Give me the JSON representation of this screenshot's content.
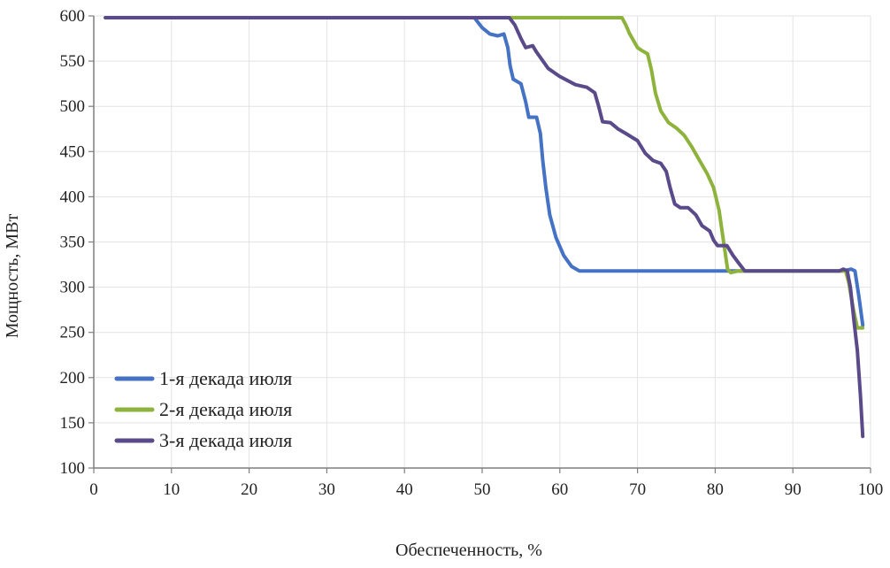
{
  "chart_data": {
    "type": "line",
    "title": "",
    "xlabel": "Обеспеченность, %",
    "ylabel": "Мощность, МВт",
    "xlim": [
      0,
      100
    ],
    "ylim": [
      100,
      600
    ],
    "x_ticks": [
      0,
      10,
      20,
      30,
      40,
      50,
      60,
      70,
      80,
      90,
      100
    ],
    "y_ticks": [
      100,
      150,
      200,
      250,
      300,
      350,
      400,
      450,
      500,
      550,
      600
    ],
    "grid": true,
    "legend_position": "bottom-left",
    "series": [
      {
        "name": "1-я декада июля",
        "color": "#4472C4",
        "points": [
          [
            1.5,
            598
          ],
          [
            49,
            598
          ],
          [
            50,
            587
          ],
          [
            51,
            580
          ],
          [
            52,
            578
          ],
          [
            52.8,
            580
          ],
          [
            53.3,
            565
          ],
          [
            53.6,
            545
          ],
          [
            54,
            530
          ],
          [
            55,
            525
          ],
          [
            55.6,
            505
          ],
          [
            56,
            488
          ],
          [
            57,
            488
          ],
          [
            57.5,
            470
          ],
          [
            57.8,
            440
          ],
          [
            58.2,
            410
          ],
          [
            58.7,
            380
          ],
          [
            59.5,
            355
          ],
          [
            60.5,
            335
          ],
          [
            61.5,
            323
          ],
          [
            62.5,
            318
          ],
          [
            70,
            318
          ],
          [
            80,
            318
          ],
          [
            90,
            318
          ],
          [
            96.5,
            318
          ],
          [
            97.5,
            320
          ],
          [
            98,
            318
          ],
          [
            98.5,
            290
          ],
          [
            99,
            258
          ]
        ]
      },
      {
        "name": "2-я декада июля",
        "color": "#8DB33C",
        "points": [
          [
            1.5,
            598
          ],
          [
            68,
            598
          ],
          [
            68.5,
            590
          ],
          [
            69,
            580
          ],
          [
            70,
            565
          ],
          [
            70.5,
            562
          ],
          [
            71.3,
            558
          ],
          [
            71.8,
            540
          ],
          [
            72.3,
            515
          ],
          [
            73,
            495
          ],
          [
            74,
            482
          ],
          [
            75,
            476
          ],
          [
            76,
            468
          ],
          [
            77,
            455
          ],
          [
            78,
            440
          ],
          [
            79,
            425
          ],
          [
            79.8,
            410
          ],
          [
            80.5,
            385
          ],
          [
            81,
            355
          ],
          [
            81.6,
            320
          ],
          [
            82,
            316
          ],
          [
            83,
            318
          ],
          [
            90,
            318
          ],
          [
            96,
            318
          ],
          [
            96.8,
            318
          ],
          [
            97.2,
            305
          ],
          [
            97.8,
            275
          ],
          [
            98.3,
            255
          ],
          [
            99,
            255
          ]
        ]
      },
      {
        "name": "3-я декада июля",
        "color": "#5B4A8A",
        "points": [
          [
            1.5,
            598
          ],
          [
            53.5,
            598
          ],
          [
            54.2,
            590
          ],
          [
            55,
            575
          ],
          [
            55.6,
            565
          ],
          [
            56.5,
            567
          ],
          [
            57,
            560
          ],
          [
            58.5,
            542
          ],
          [
            60,
            533
          ],
          [
            62,
            524
          ],
          [
            63.5,
            521
          ],
          [
            64.5,
            515
          ],
          [
            65,
            500
          ],
          [
            65.5,
            483
          ],
          [
            66.5,
            482
          ],
          [
            67.5,
            475
          ],
          [
            68.5,
            470
          ],
          [
            70,
            462
          ],
          [
            71,
            448
          ],
          [
            72,
            440
          ],
          [
            73,
            437
          ],
          [
            73.7,
            428
          ],
          [
            74.2,
            410
          ],
          [
            74.8,
            392
          ],
          [
            75.5,
            388
          ],
          [
            76.5,
            388
          ],
          [
            77.5,
            380
          ],
          [
            78.3,
            368
          ],
          [
            79.3,
            362
          ],
          [
            79.8,
            352
          ],
          [
            80.3,
            346
          ],
          [
            81.5,
            346
          ],
          [
            82.3,
            335
          ],
          [
            83,
            327
          ],
          [
            83.8,
            318
          ],
          [
            85,
            318
          ],
          [
            90,
            318
          ],
          [
            96,
            318
          ],
          [
            96.5,
            320
          ],
          [
            97,
            318
          ],
          [
            97.4,
            300
          ],
          [
            97.9,
            260
          ],
          [
            98.3,
            230
          ],
          [
            98.7,
            180
          ],
          [
            99,
            135
          ]
        ]
      }
    ]
  }
}
